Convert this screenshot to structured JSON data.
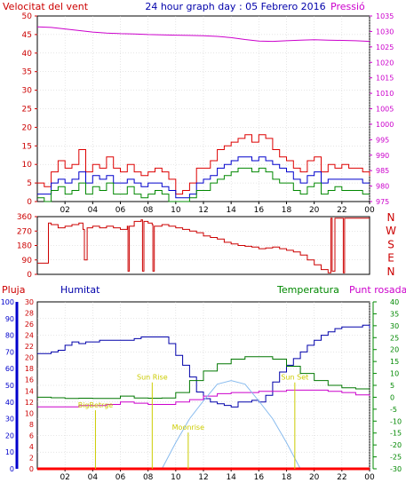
{
  "colors": {
    "wind_avg": "#0000cc",
    "wind_gust": "#dd0000",
    "wind_speed": "#008800",
    "pressure": "#cc00cc",
    "direction": "#cc0000",
    "humidity": "#0000aa",
    "temperature": "#007700",
    "dew_point": "#cc00cc",
    "rain": "#ff0000",
    "solar": "#88bbee",
    "axis_wind": "#cc0000",
    "axis_pressure": "#cc00cc",
    "axis_humidity": "#0000cc",
    "axis_temp": "#008800",
    "annotation": "#cccc00",
    "grid": "#cccccc"
  },
  "chart_data": [
    {
      "type": "line",
      "title": "24 hour graph day : 05 Febrero 2016",
      "ylabel": "Velocitat del vent",
      "y2label": "Pressió",
      "ylim": [
        0,
        50
      ],
      "y2lim": [
        975,
        1035
      ],
      "yticks": [
        "0",
        "5",
        "10",
        "15",
        "20",
        "25",
        "30",
        "35",
        "40",
        "45",
        "50"
      ],
      "y2ticks": [
        "975",
        "980",
        "985",
        "990",
        "995",
        "1000",
        "1005",
        "1010",
        "1015",
        "1020",
        "1025",
        "1030",
        "1035"
      ],
      "xrange": [
        0,
        24
      ],
      "xticks": [
        "02",
        "04",
        "06",
        "08",
        "10",
        "12",
        "14",
        "16",
        "18",
        "20",
        "22",
        "00"
      ],
      "series": [
        {
          "key": "gust",
          "x": [
            0,
            0.5,
            1,
            1.5,
            2,
            2.5,
            3,
            3.5,
            4,
            4.5,
            5,
            5.5,
            6,
            6.5,
            7,
            7.5,
            8,
            8.5,
            9,
            9.5,
            10,
            10.5,
            11,
            11.5,
            12,
            12.5,
            13,
            13.5,
            14,
            14.5,
            15,
            15.5,
            16,
            16.5,
            17,
            17.5,
            18,
            18.5,
            19,
            19.5,
            20,
            20.5,
            21,
            21.5,
            22,
            22.5,
            23,
            23.5,
            24
          ],
          "values": [
            5,
            4,
            8,
            11,
            9,
            10,
            14,
            8,
            10,
            9,
            12,
            9,
            8,
            10,
            8,
            7,
            8,
            9,
            8,
            6,
            2,
            3,
            5,
            9,
            9,
            11,
            14,
            15,
            16,
            17,
            18,
            16,
            18,
            17,
            14,
            12,
            11,
            9,
            8,
            11,
            12,
            8,
            10,
            9,
            10,
            9,
            9,
            8,
            7
          ]
        },
        {
          "key": "avg",
          "x": [
            0,
            0.5,
            1,
            1.5,
            2,
            2.5,
            3,
            3.5,
            4,
            4.5,
            5,
            5.5,
            6,
            6.5,
            7,
            7.5,
            8,
            8.5,
            9,
            9.5,
            10,
            10.5,
            11,
            11.5,
            12,
            12.5,
            13,
            13.5,
            14,
            14.5,
            15,
            15.5,
            16,
            16.5,
            17,
            17.5,
            18,
            18.5,
            19,
            19.5,
            20,
            20.5,
            21,
            21.5,
            22,
            22.5,
            23,
            23.5,
            24
          ],
          "values": [
            2,
            2,
            5,
            6,
            5,
            6,
            8,
            5,
            7,
            6,
            7,
            5,
            5,
            6,
            5,
            4,
            5,
            5,
            4,
            3,
            1,
            1,
            2,
            5,
            6,
            7,
            9,
            10,
            11,
            12,
            12,
            11,
            12,
            11,
            10,
            9,
            8,
            6,
            5,
            7,
            8,
            5,
            6,
            6,
            6,
            6,
            6,
            5,
            5
          ]
        },
        {
          "key": "speed",
          "x": [
            0,
            0.5,
            1,
            1.5,
            2,
            2.5,
            3,
            3.5,
            4,
            4.5,
            5,
            5.5,
            6,
            6.5,
            7,
            7.5,
            8,
            8.5,
            9,
            9.5,
            10,
            10.5,
            11,
            11.5,
            12,
            12.5,
            13,
            13.5,
            14,
            14.5,
            15,
            15.5,
            16,
            16.5,
            17,
            17.5,
            18,
            18.5,
            19,
            19.5,
            20,
            20.5,
            21,
            21.5,
            22,
            22.5,
            23,
            23.5,
            24
          ],
          "values": [
            1,
            0,
            3,
            4,
            2,
            3,
            5,
            2,
            4,
            3,
            5,
            2,
            2,
            4,
            2,
            1,
            2,
            3,
            2,
            0,
            0,
            0,
            1,
            3,
            3,
            5,
            6,
            7,
            8,
            9,
            9,
            8,
            9,
            8,
            6,
            5,
            5,
            3,
            2,
            4,
            5,
            2,
            3,
            4,
            3,
            3,
            3,
            2,
            2
          ]
        },
        {
          "key": "pressure",
          "axis": "y2",
          "x": [
            0,
            1,
            2,
            3,
            4,
            5,
            6,
            7,
            8,
            9,
            10,
            11,
            12,
            13,
            14,
            15,
            16,
            17,
            18,
            19,
            20,
            21,
            22,
            23,
            24
          ],
          "values": [
            1031.5,
            1031.3,
            1030.8,
            1030.3,
            1029.8,
            1029.5,
            1029.3,
            1029.2,
            1029.0,
            1028.9,
            1028.8,
            1028.7,
            1028.6,
            1028.4,
            1028.0,
            1027.4,
            1026.9,
            1026.8,
            1027.0,
            1027.2,
            1027.3,
            1027.2,
            1027.1,
            1027.0,
            1026.8
          ]
        }
      ]
    },
    {
      "type": "line",
      "ylim": [
        0,
        360
      ],
      "yticks": [
        "0",
        "90",
        "180",
        "270",
        "360"
      ],
      "compass": [
        "N",
        "W",
        "S",
        "E",
        "N"
      ],
      "xrange": [
        0,
        24
      ],
      "series": [
        {
          "key": "direction",
          "x": [
            0,
            0.7,
            0.8,
            1.0,
            1.5,
            2.0,
            2.5,
            3.0,
            3.3,
            3.4,
            3.6,
            4.0,
            4.5,
            5.0,
            5.5,
            6.0,
            6.5,
            6.55,
            6.65,
            7.0,
            7.5,
            7.6,
            7.7,
            8.0,
            8.3,
            8.35,
            8.45,
            9.0,
            9.5,
            10.0,
            10.5,
            11.0,
            11.5,
            12.0,
            12.5,
            13.0,
            13.5,
            14.0,
            14.5,
            15.0,
            15.5,
            16.0,
            16.5,
            17.0,
            17.5,
            18.0,
            18.5,
            19.0,
            19.5,
            20.0,
            20.5,
            21.0,
            21.2,
            21.3,
            21.5,
            22.0,
            22.1,
            22.2,
            22.5,
            23.0,
            24.0
          ],
          "values": [
            70,
            70,
            320,
            310,
            290,
            300,
            310,
            320,
            280,
            90,
            290,
            300,
            290,
            300,
            290,
            280,
            300,
            20,
            300,
            330,
            340,
            20,
            330,
            320,
            310,
            20,
            300,
            310,
            300,
            290,
            280,
            270,
            260,
            240,
            230,
            220,
            200,
            190,
            180,
            175,
            170,
            160,
            165,
            170,
            160,
            150,
            140,
            120,
            90,
            60,
            30,
            10,
            350,
            20,
            350,
            350,
            10,
            350,
            350,
            350,
            350
          ]
        }
      ]
    },
    {
      "type": "line",
      "legend": [
        "Pluja",
        "Humitat",
        "Temperatura",
        "Punt rosada"
      ],
      "yticks_humidity": [
        "0",
        "10",
        "20",
        "30",
        "40",
        "50",
        "60",
        "70",
        "80",
        "90",
        "100"
      ],
      "yticks_rain": [
        "0",
        "2",
        "4",
        "6",
        "8",
        "10",
        "12",
        "14",
        "16",
        "18",
        "20",
        "22",
        "24",
        "26",
        "28",
        "30"
      ],
      "yticks_temp": [
        "-30",
        "-25",
        "-20",
        "-15",
        "-10",
        "-5",
        "0",
        "5",
        "10",
        "15",
        "20",
        "25",
        "30",
        "35",
        "40"
      ],
      "xrange": [
        0,
        24
      ],
      "xticks": [
        "02",
        "04",
        "06",
        "08",
        "10",
        "12",
        "14",
        "16",
        "18",
        "20",
        "22",
        "00"
      ],
      "annotations": [
        {
          "label": "BigBetrge",
          "x": 4.2,
          "y": 11
        },
        {
          "label": "Sun Rise",
          "x": 8.3,
          "y": 16
        },
        {
          "label": "Moonrise",
          "x": 10.9,
          "y": 7
        },
        {
          "label": "Sun Set",
          "x": 18.6,
          "y": 16
        }
      ],
      "series": [
        {
          "key": "humidity",
          "axis": "humidity",
          "x": [
            0,
            0.5,
            1,
            1.5,
            2,
            2.5,
            3,
            3.5,
            4,
            4.5,
            5,
            5.5,
            6,
            6.5,
            7,
            7.5,
            8,
            8.5,
            9,
            9.5,
            10,
            10.5,
            11,
            11.5,
            12,
            12.5,
            13,
            13.5,
            14,
            14.5,
            15,
            15.5,
            16,
            16.5,
            17,
            17.5,
            18,
            18.5,
            19,
            19.5,
            20,
            20.5,
            21,
            21.5,
            22,
            22.5,
            23,
            23.5,
            24
          ],
          "values": [
            69,
            69,
            70,
            71,
            74,
            76,
            75,
            76,
            76,
            77,
            77,
            77,
            77,
            77,
            78,
            79,
            79,
            79,
            79,
            75,
            68,
            62,
            55,
            46,
            42,
            40,
            39,
            38,
            37,
            40,
            40,
            41,
            40,
            44,
            52,
            58,
            62,
            66,
            70,
            74,
            77,
            80,
            82,
            84,
            85,
            85,
            85,
            86,
            84
          ]
        },
        {
          "key": "temperature",
          "axis": "temp",
          "x": [
            0,
            1,
            2,
            3,
            4,
            5,
            6,
            7,
            8,
            9,
            10,
            11,
            12,
            13,
            14,
            15,
            16,
            17,
            18,
            19,
            20,
            21,
            22,
            23,
            24
          ],
          "values": [
            0,
            -0.2,
            -0.5,
            -0.4,
            -0.5,
            -0.5,
            0.5,
            -0.3,
            -0.4,
            -0.3,
            2,
            7,
            11,
            14,
            16,
            17,
            17,
            16,
            13,
            10,
            7,
            5,
            4,
            3.5,
            3.5
          ]
        },
        {
          "key": "dew_point",
          "axis": "temp",
          "x": [
            0,
            1,
            2,
            3,
            4,
            5,
            6,
            7,
            8,
            9,
            10,
            11,
            12,
            13,
            14,
            15,
            16,
            17,
            18,
            19,
            20,
            21,
            22,
            23,
            24
          ],
          "values": [
            -4,
            -4,
            -4,
            -3.5,
            -3.5,
            -3,
            -2,
            -2.5,
            -3,
            -3,
            -2,
            -1,
            0.5,
            1.5,
            2,
            2,
            2.5,
            2.5,
            3,
            3,
            3,
            2.5,
            2,
            1,
            0.5
          ]
        },
        {
          "key": "solar",
          "axis": "temp",
          "x": [
            9,
            10,
            11,
            12,
            13,
            14,
            15,
            16,
            17,
            18,
            19
          ],
          "values": [
            -30,
            -19,
            -9,
            -1.5,
            5.5,
            7,
            5.5,
            -1.5,
            -9,
            -19,
            -30
          ]
        },
        {
          "key": "rain",
          "axis": "rain",
          "x": [
            0,
            24
          ],
          "values": [
            0,
            0
          ]
        }
      ]
    }
  ]
}
